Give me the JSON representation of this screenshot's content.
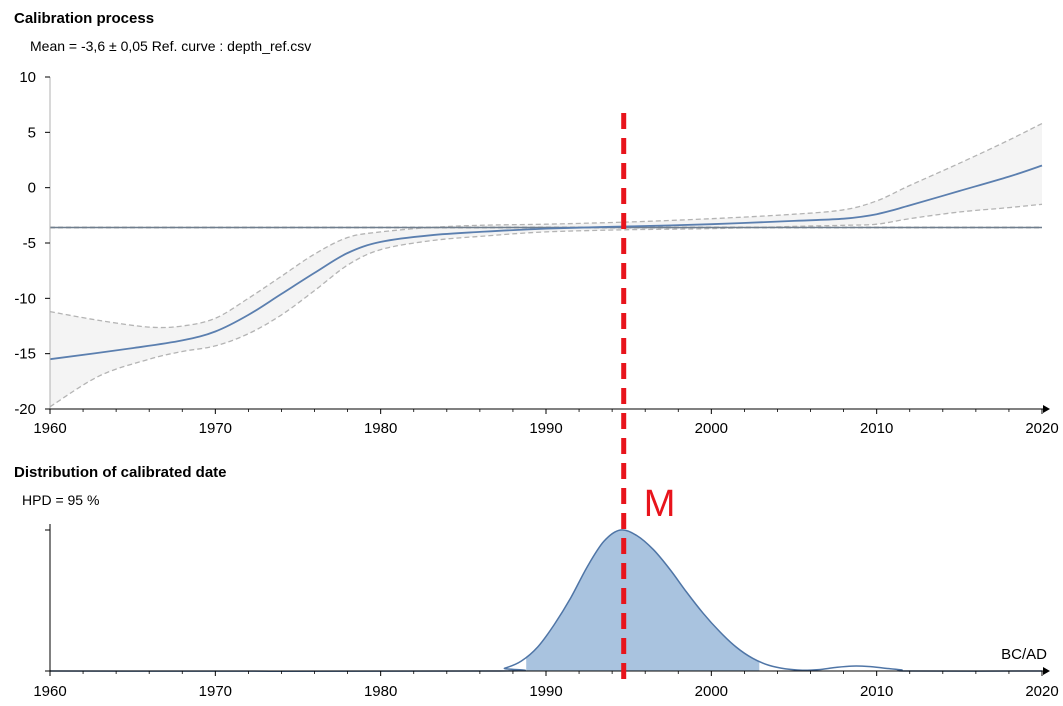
{
  "top_panel": {
    "title": "Calibration process",
    "subtitle": "Mean = -3,6  ±  0,05 Ref. curve : depth_ref.csv"
  },
  "bottom_panel": {
    "title": "Distribution of calibrated date",
    "subtitle": "HPD = 95 %",
    "axis_unit": "BC/AD"
  },
  "marker": {
    "label": "M",
    "x": 1994.7,
    "color": "#e8141c"
  },
  "colors": {
    "curve": "#5b7faf",
    "band_fill": "#f4f4f4",
    "band_edge": "#b4b4b4",
    "mean_line": "#6f7e8e",
    "density_fill": "#a9c3df",
    "density_line": "#4f75a6"
  },
  "chart_data": [
    {
      "type": "line",
      "title": "Calibration process",
      "xlim": [
        1960,
        2020
      ],
      "ylim": [
        -20,
        10
      ],
      "x_ticks": [
        1960,
        1970,
        1980,
        1990,
        2000,
        2010,
        2020
      ],
      "y_ticks": [
        10,
        5,
        0,
        -5,
        -10,
        -15,
        -20
      ],
      "grid": false,
      "series": [
        {
          "role": "curve",
          "x": [
            1960,
            1965,
            1968,
            1970,
            1972,
            1974,
            1976,
            1978,
            1980,
            1983,
            1986,
            1990,
            1995,
            2000,
            2005,
            2008,
            2010,
            2012,
            2015,
            2018,
            2020
          ],
          "y": [
            -15.5,
            -14.5,
            -13.8,
            -13.0,
            -11.5,
            -9.6,
            -7.7,
            -5.9,
            -4.9,
            -4.3,
            -4.0,
            -3.7,
            -3.5,
            -3.3,
            -3.0,
            -2.8,
            -2.4,
            -1.6,
            -0.3,
            1.0,
            2.0
          ]
        },
        {
          "role": "band-upper",
          "x": [
            1960,
            1963,
            1966,
            1968,
            1970,
            1972,
            1974,
            1976,
            1978,
            1980,
            1983,
            1986,
            1990,
            1995,
            2000,
            2005,
            2008,
            2010,
            2012,
            2015,
            2018,
            2020
          ],
          "y": [
            -11.2,
            -12.0,
            -12.6,
            -12.5,
            -11.8,
            -10.0,
            -8.0,
            -6.0,
            -4.5,
            -4.0,
            -3.6,
            -3.4,
            -3.3,
            -3.1,
            -2.8,
            -2.4,
            -2.0,
            -1.2,
            0.2,
            2.2,
            4.3,
            5.8
          ]
        },
        {
          "role": "band-lower",
          "x": [
            1960,
            1963,
            1966,
            1968,
            1970,
            1972,
            1974,
            1976,
            1978,
            1980,
            1983,
            1986,
            1990,
            1995,
            2000,
            2005,
            2008,
            2010,
            2012,
            2015,
            2018,
            2020
          ],
          "y": [
            -19.8,
            -17.0,
            -15.5,
            -14.8,
            -14.3,
            -13.2,
            -11.5,
            -9.3,
            -7.0,
            -5.6,
            -4.8,
            -4.4,
            -4.0,
            -3.8,
            -3.7,
            -3.5,
            -3.4,
            -3.3,
            -2.8,
            -2.2,
            -1.8,
            -1.5
          ]
        },
        {
          "role": "mean",
          "y": -3.6
        },
        {
          "role": "mean-edge",
          "y": -3.55
        },
        {
          "role": "mean-edge",
          "y": -3.65
        }
      ]
    },
    {
      "type": "area",
      "title": "Distribution of calibrated date",
      "xlim": [
        1960,
        2020
      ],
      "ylim": [
        0,
        1
      ],
      "x_ticks": [
        1960,
        1970,
        1980,
        1990,
        2000,
        2010,
        2020
      ],
      "xlabel": "BC/AD",
      "hpd_level": 95,
      "hpd_interval": [
        1988.8,
        2002.9
      ],
      "grid": false,
      "density": {
        "x": [
          1960,
          1986.5,
          1987.5,
          1988.5,
          1989.5,
          1990.5,
          1991.5,
          1992.5,
          1993.5,
          1994.5,
          1995.5,
          1996.5,
          1997.5,
          1998.5,
          1999.5,
          2000.5,
          2001.5,
          2002.5,
          2003.5,
          2004.5,
          2005.5,
          2006.5,
          2007.5,
          2008.5,
          2009.5,
          2010.5,
          2011.5,
          2012,
          2020
        ],
        "y": [
          0,
          0,
          0.02,
          0.07,
          0.17,
          0.33,
          0.52,
          0.74,
          0.92,
          1.0,
          0.96,
          0.86,
          0.72,
          0.56,
          0.41,
          0.28,
          0.17,
          0.09,
          0.04,
          0.015,
          0.006,
          0.01,
          0.025,
          0.035,
          0.032,
          0.02,
          0.008,
          0,
          0
        ]
      }
    }
  ]
}
